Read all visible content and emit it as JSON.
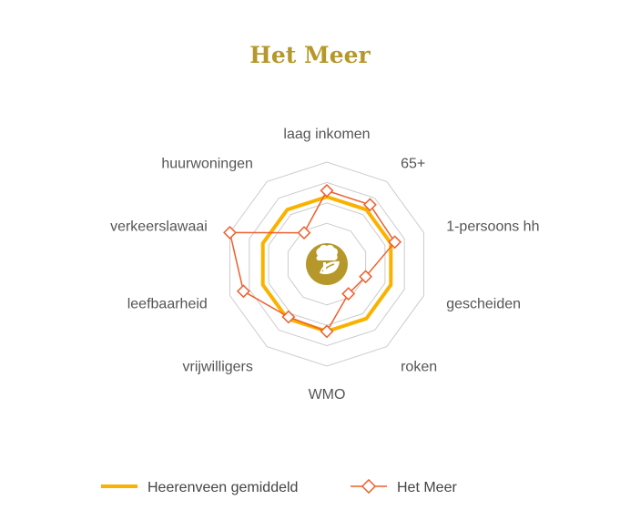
{
  "title": "Het Meer",
  "colors": {
    "average": "#f9b200",
    "area": "#ee5f2d",
    "grid": "#cccccc",
    "emblem": "#b6982a",
    "title": "#b6982a"
  },
  "center_icon": "leaf-emblem-icon",
  "chart_data": {
    "type": "radar",
    "title": "Het Meer",
    "categories": [
      "laag inkomen",
      "65+",
      "1-persoons hh",
      "gescheiden",
      "roken",
      "WMO",
      "vrijwilligers",
      "leefbaarheid",
      "verkeerslawaai",
      "huurwoningen"
    ],
    "rlim": [
      0,
      5
    ],
    "grid_levels": 5,
    "grid": true,
    "legend_position": "bottom",
    "series": [
      {
        "name": "Heerenveen gemiddeld",
        "values": [
          3.3,
          3.3,
          3.3,
          3.3,
          3.3,
          3.3,
          3.3,
          3.3,
          3.3,
          3.3
        ]
      },
      {
        "name": "Het Meer",
        "values": [
          3.6,
          3.6,
          3.5,
          2.0,
          1.8,
          3.3,
          3.2,
          4.3,
          5.0,
          1.9
        ]
      }
    ]
  }
}
